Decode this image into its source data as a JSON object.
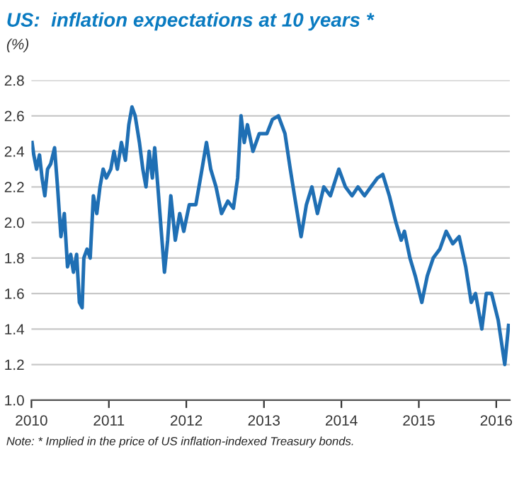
{
  "chart_data": {
    "type": "line",
    "title": "US:  inflation expectations at 10 years *",
    "ylabel": "(%)",
    "annotations": [
      "Note: * Implied in the price of US inflation-indexed Treasury bonds."
    ],
    "x": [
      "2010-01-04",
      "2010-01-12",
      "2010-01-25",
      "2010-02-08",
      "2010-02-20",
      "2010-03-05",
      "2010-03-18",
      "2010-04-02",
      "2010-04-20",
      "2010-05-04",
      "2010-05-20",
      "2010-06-05",
      "2010-06-20",
      "2010-07-05",
      "2010-07-18",
      "2010-08-02",
      "2010-08-15",
      "2010-08-28",
      "2010-09-05",
      "2010-09-20",
      "2010-10-05",
      "2010-10-20",
      "2010-11-05",
      "2010-11-20",
      "2010-12-05",
      "2010-12-20",
      "2011-01-10",
      "2011-01-25",
      "2011-02-10",
      "2011-03-01",
      "2011-03-20",
      "2011-04-05",
      "2011-04-20",
      "2011-05-05",
      "2011-05-25",
      "2011-06-10",
      "2011-06-25",
      "2011-07-10",
      "2011-07-25",
      "2011-08-05",
      "2011-08-20",
      "2011-09-05",
      "2011-09-20",
      "2011-10-05",
      "2011-10-20",
      "2011-11-10",
      "2011-12-01",
      "2011-12-20",
      "2012-01-15",
      "2012-02-15",
      "2012-03-15",
      "2012-04-05",
      "2012-04-25",
      "2012-05-20",
      "2012-06-15",
      "2012-07-15",
      "2012-08-10",
      "2012-08-30",
      "2012-09-15",
      "2012-09-30",
      "2012-10-15",
      "2012-11-10",
      "2012-12-10",
      "2013-01-15",
      "2013-02-10",
      "2013-03-10",
      "2013-04-10",
      "2013-05-05",
      "2013-05-25",
      "2013-06-25",
      "2013-07-20",
      "2013-08-15",
      "2013-09-10",
      "2013-10-10",
      "2013-11-10",
      "2013-12-20",
      "2014-01-20",
      "2014-02-20",
      "2014-03-20",
      "2014-04-20",
      "2014-05-20",
      "2014-06-20",
      "2014-07-15",
      "2014-08-15",
      "2014-09-15",
      "2014-10-10",
      "2014-10-25",
      "2014-11-20",
      "2014-12-15",
      "2015-01-15",
      "2015-02-10",
      "2015-03-10",
      "2015-04-10",
      "2015-05-10",
      "2015-06-10",
      "2015-07-10",
      "2015-08-10",
      "2015-09-05",
      "2015-09-25",
      "2015-10-10",
      "2015-10-25",
      "2015-11-15",
      "2015-12-10",
      "2016-01-10",
      "2016-02-10",
      "2016-02-28"
    ],
    "values": [
      2.45,
      2.38,
      2.3,
      2.38,
      2.25,
      2.15,
      2.3,
      2.33,
      2.42,
      2.2,
      1.92,
      2.05,
      1.75,
      1.82,
      1.72,
      1.82,
      1.55,
      1.52,
      1.8,
      1.85,
      1.8,
      2.15,
      2.05,
      2.2,
      2.3,
      2.25,
      2.3,
      2.4,
      2.3,
      2.45,
      2.35,
      2.55,
      2.65,
      2.6,
      2.45,
      2.3,
      2.2,
      2.4,
      2.25,
      2.42,
      2.2,
      1.95,
      1.72,
      1.9,
      2.15,
      1.9,
      2.05,
      1.95,
      2.1,
      2.1,
      2.3,
      2.45,
      2.3,
      2.2,
      2.05,
      2.12,
      2.08,
      2.25,
      2.6,
      2.45,
      2.55,
      2.4,
      2.5,
      2.5,
      2.58,
      2.6,
      2.5,
      2.3,
      2.15,
      1.92,
      2.1,
      2.2,
      2.05,
      2.2,
      2.15,
      2.3,
      2.2,
      2.15,
      2.2,
      2.15,
      2.2,
      2.25,
      2.27,
      2.15,
      2.0,
      1.9,
      1.95,
      1.8,
      1.7,
      1.55,
      1.7,
      1.8,
      1.85,
      1.95,
      1.88,
      1.92,
      1.75,
      1.55,
      1.6,
      1.5,
      1.4,
      1.6,
      1.6,
      1.45,
      1.2,
      1.42
    ],
    "color": "#1f6fb4",
    "xlim": [
      "2010-01-01",
      "2016-03-05"
    ],
    "xticks": [
      {
        "value": "2010-01-01",
        "label": "2010"
      },
      {
        "value": "2011-01-01",
        "label": "2011"
      },
      {
        "value": "2012-01-01",
        "label": "2012"
      },
      {
        "value": "2013-01-01",
        "label": "2013"
      },
      {
        "value": "2014-01-01",
        "label": "2014"
      },
      {
        "value": "2015-01-01",
        "label": "2015"
      },
      {
        "value": "2016-01-01",
        "label": "2016"
      }
    ],
    "ylim": [
      1.0,
      2.8
    ],
    "yticks": [
      {
        "value": 1,
        "label": "1.0"
      },
      1.2,
      1.4,
      1.6,
      1.8,
      {
        "value": 2,
        "label": "2.0"
      },
      2.2,
      2.4,
      2.6,
      2.8
    ],
    "grid": "y",
    "legend": false,
    "marker": "none",
    "line_style": "solid"
  }
}
